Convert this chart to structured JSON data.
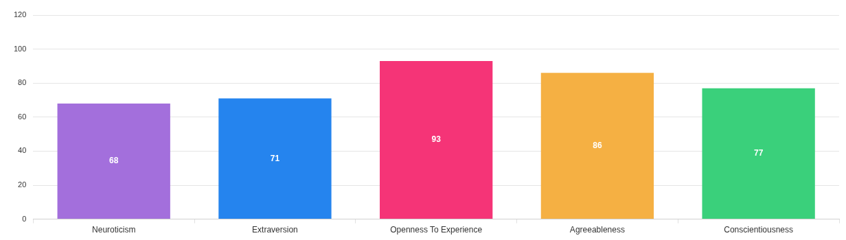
{
  "chart_data": {
    "type": "bar",
    "categories": [
      "Neuroticism",
      "Extraversion",
      "Openness To Experience",
      "Agreeableness",
      "Conscientiousness"
    ],
    "values": [
      68,
      71,
      93,
      86,
      77
    ],
    "colors": [
      "#a36fdc",
      "#2584ee",
      "#f53477",
      "#f5b043",
      "#3ad07b"
    ],
    "ylim": [
      0,
      120
    ],
    "yticks": [
      0,
      20,
      40,
      60,
      80,
      100,
      120
    ],
    "grid": "y",
    "data_labels": true
  }
}
